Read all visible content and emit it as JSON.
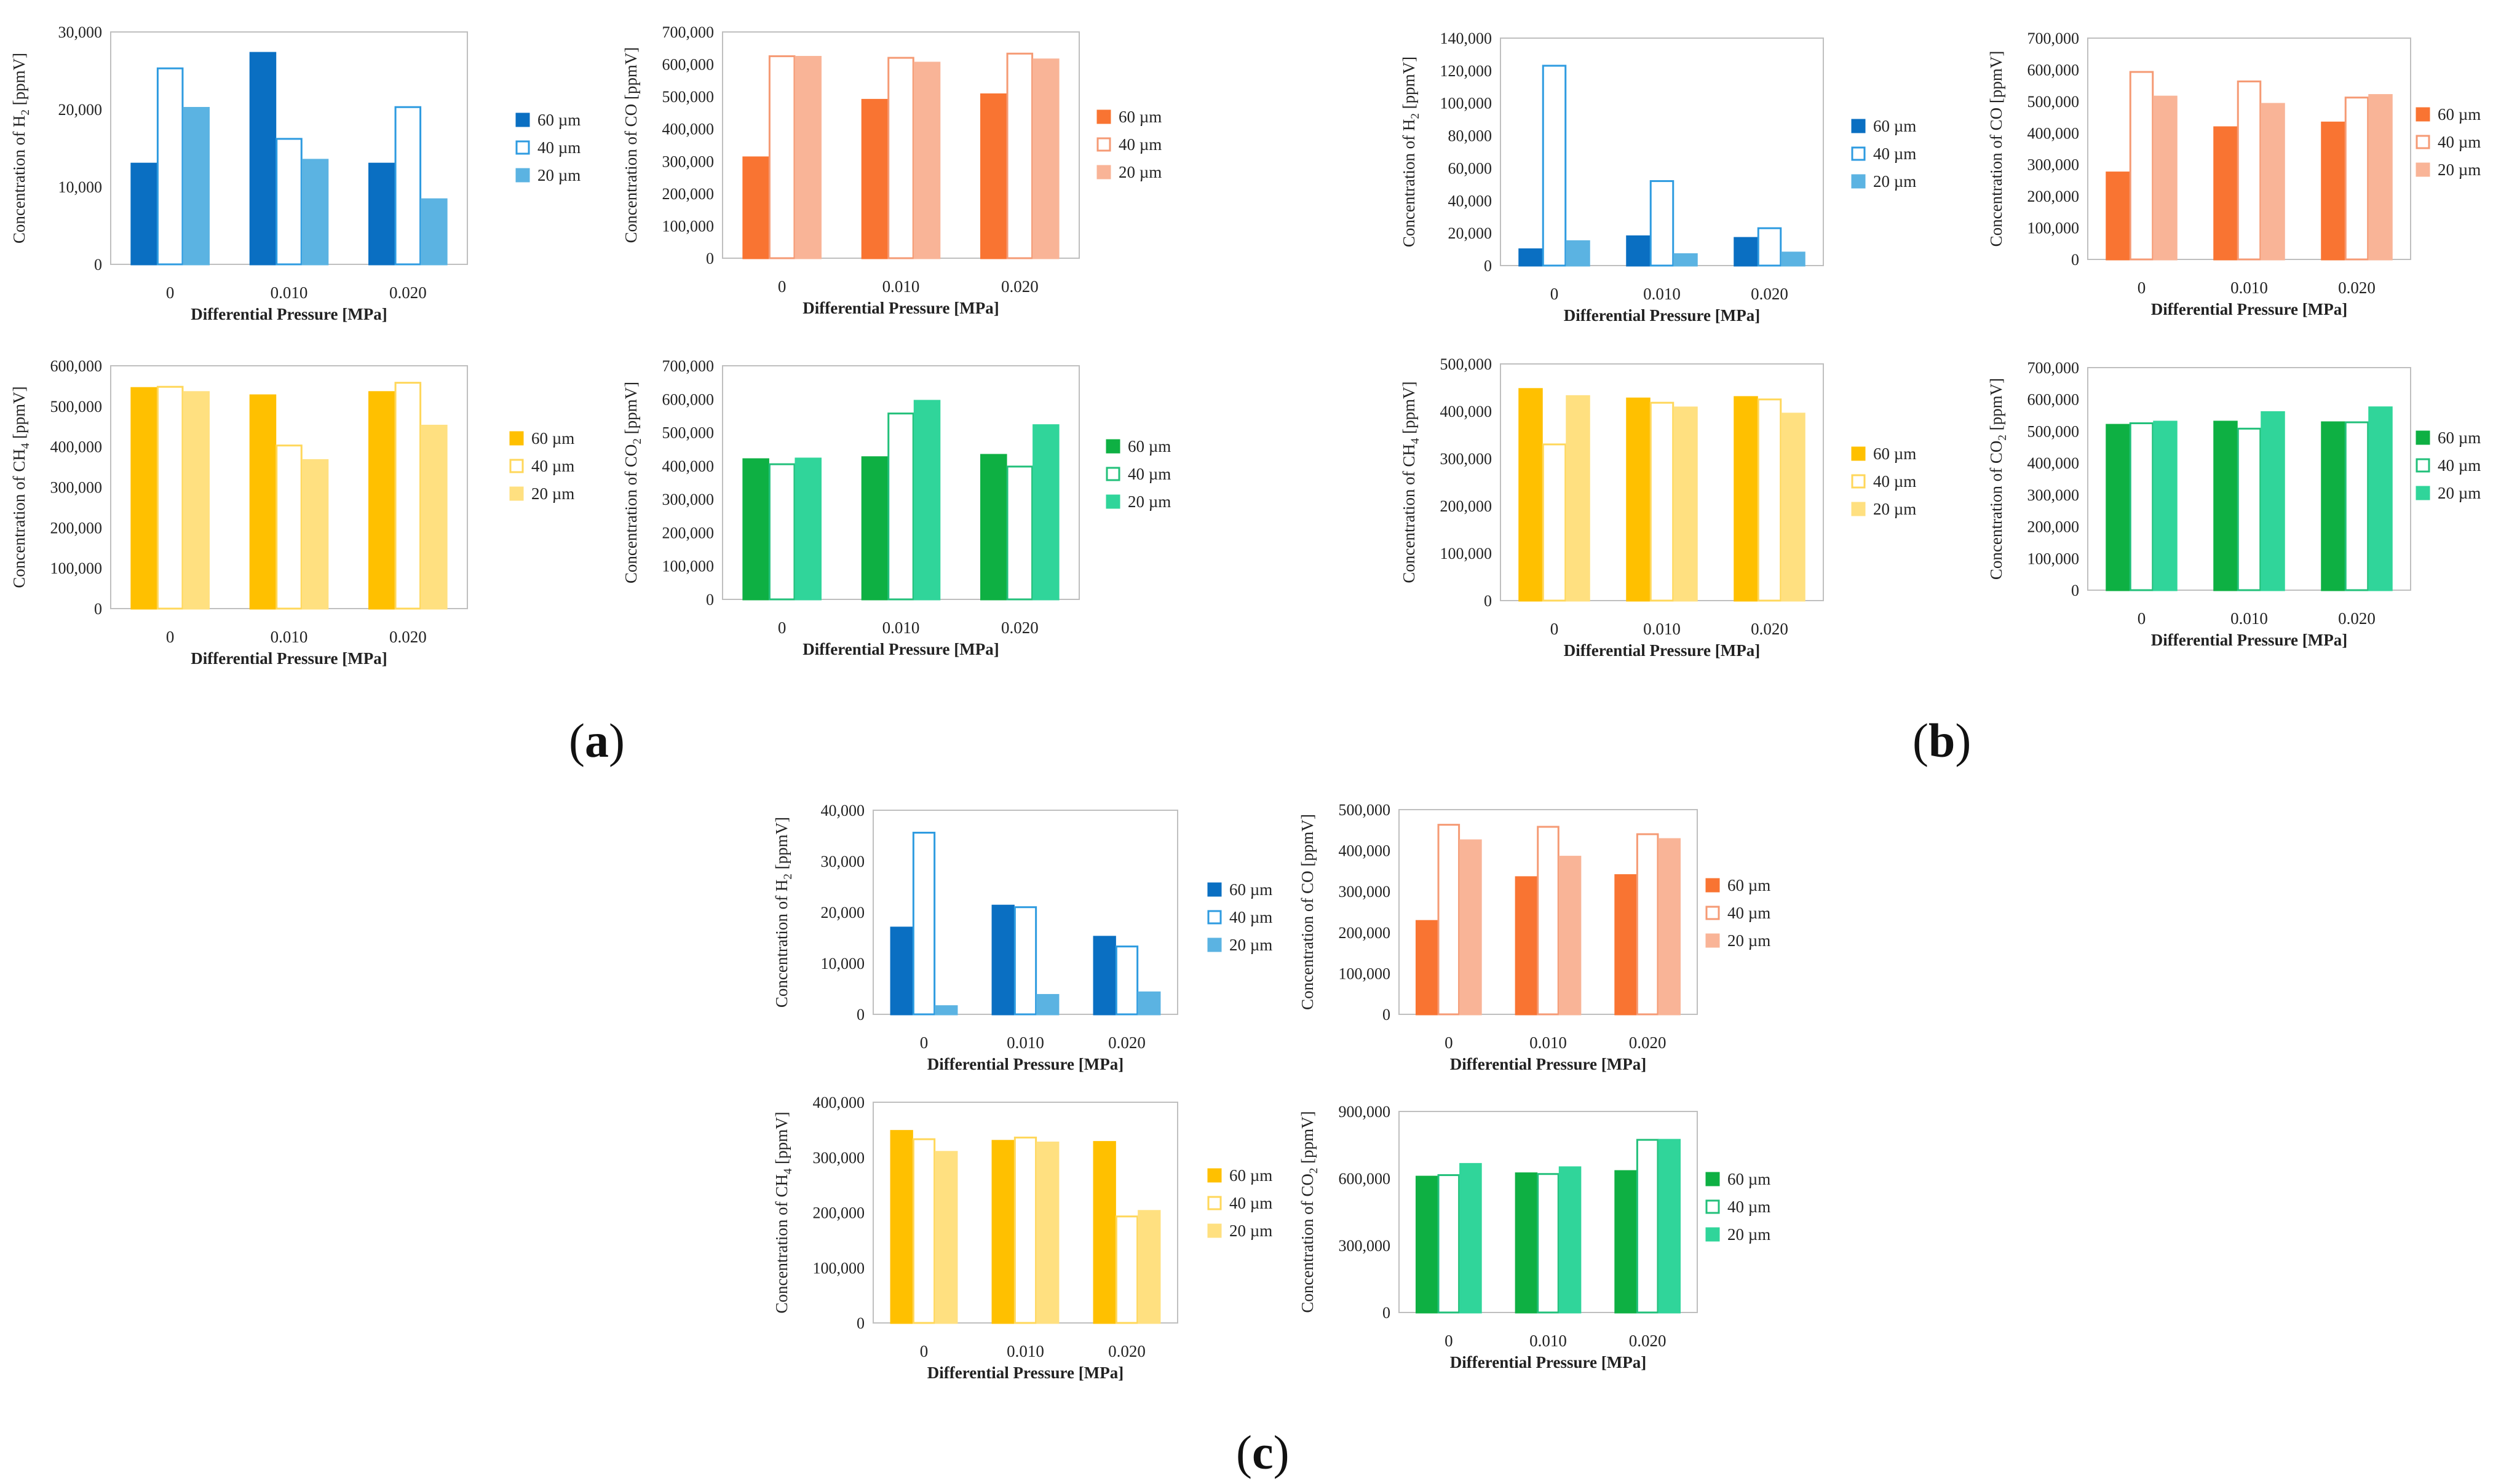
{
  "chart_data": [
    {
      "type": "bar",
      "panel": "a",
      "gas": "H2",
      "ylabel_prefix": "Concentration of H",
      "ylabel_sub": "2",
      "ylabel_suffix": " [ppmV]",
      "xlabel": "Differential  Pressure [MPa]",
      "categories": [
        "0",
        "0.010",
        "0.020"
      ],
      "yticks": [
        "0",
        "10,000",
        "20,000",
        "30,000"
      ],
      "ylim": [
        0,
        30000
      ],
      "series": [
        {
          "name": "60 µm",
          "values": [
            13000,
            27300,
            13000
          ]
        },
        {
          "name": "40 µm",
          "values": [
            25300,
            16200,
            20300
          ]
        },
        {
          "name": "20 µm",
          "values": [
            20200,
            13500,
            8400
          ]
        }
      ]
    },
    {
      "type": "bar",
      "panel": "a",
      "gas": "CO",
      "ylabel_prefix": "Concentration of CO [ppmV]",
      "ylabel_sub": "",
      "ylabel_suffix": "",
      "xlabel": "Differential  Pressure [MPa]",
      "categories": [
        "0",
        "0.010",
        "0.020"
      ],
      "yticks": [
        "0",
        "100,000",
        "200,000",
        "300,000",
        "400,000",
        "500,000",
        "600,000",
        "700,000"
      ],
      "ylim": [
        0,
        700000
      ],
      "series": [
        {
          "name": "60 µm",
          "values": [
            312000,
            490000,
            507000
          ]
        },
        {
          "name": "40 µm",
          "values": [
            625000,
            620000,
            633000
          ]
        },
        {
          "name": "20 µm",
          "values": [
            623000,
            605000,
            615000
          ]
        }
      ]
    },
    {
      "type": "bar",
      "panel": "a",
      "gas": "CH4",
      "ylabel_prefix": "Concentration of CH",
      "ylabel_sub": "4",
      "ylabel_suffix": "  [ppmV]",
      "xlabel": "Differential  Pressure [MPa]",
      "categories": [
        "0",
        "0.010",
        "0.020"
      ],
      "yticks": [
        "0",
        "100,000",
        "200,000",
        "300,000",
        "400,000",
        "500,000",
        "600,000"
      ],
      "ylim": [
        0,
        600000
      ],
      "series": [
        {
          "name": "60 µm",
          "values": [
            545000,
            527000,
            535000
          ]
        },
        {
          "name": "40 µm",
          "values": [
            548000,
            403000,
            558000
          ]
        },
        {
          "name": "20 µm",
          "values": [
            535000,
            367000,
            452000
          ]
        }
      ]
    },
    {
      "type": "bar",
      "panel": "a",
      "gas": "CO2",
      "ylabel_prefix": "Concentration of CO",
      "ylabel_sub": "2",
      "ylabel_suffix": " [ppmV]",
      "xlabel": "Differential  Pressure [MPa]",
      "categories": [
        "0",
        "0.010",
        "0.020"
      ],
      "yticks": [
        "0",
        "100,000",
        "200,000",
        "300,000",
        "400,000",
        "500,000",
        "600,000",
        "700,000"
      ],
      "ylim": [
        0,
        700000
      ],
      "series": [
        {
          "name": "60 µm",
          "values": [
            420000,
            426000,
            433000
          ]
        },
        {
          "name": "40 µm",
          "values": [
            405000,
            557000,
            398000
          ]
        },
        {
          "name": "20 µm",
          "values": [
            422000,
            595000,
            522000
          ]
        }
      ]
    },
    {
      "type": "bar",
      "panel": "b",
      "gas": "H2",
      "ylabel_prefix": "Concentration of H",
      "ylabel_sub": "2",
      "ylabel_suffix": " [ppmV]",
      "xlabel": "Differential  Pressure [MPa]",
      "categories": [
        "0",
        "0.010",
        "0.020"
      ],
      "yticks": [
        "0",
        "20,000",
        "40,000",
        "60,000",
        "80,000",
        "100,000",
        "120,000",
        "140,000"
      ],
      "ylim": [
        0,
        140000
      ],
      "series": [
        {
          "name": "60 µm",
          "values": [
            10000,
            18000,
            17000
          ]
        },
        {
          "name": "40 µm",
          "values": [
            123000,
            52000,
            23000
          ]
        },
        {
          "name": "20 µm",
          "values": [
            15000,
            7000,
            8000
          ]
        }
      ]
    },
    {
      "type": "bar",
      "panel": "b",
      "gas": "CO",
      "ylabel_prefix": "Concentration of CO [ppmV]",
      "ylabel_sub": "",
      "ylabel_suffix": "",
      "xlabel": "Differential  Pressure [MPa]",
      "categories": [
        "0",
        "0.010",
        "0.020"
      ],
      "yticks": [
        "0",
        "100,000",
        "200,000",
        "300,000",
        "400,000",
        "500,000",
        "600,000",
        "700,000"
      ],
      "ylim": [
        0,
        700000
      ],
      "series": [
        {
          "name": "60 µm",
          "values": [
            275000,
            418000,
            433000
          ]
        },
        {
          "name": "40 µm",
          "values": [
            593000,
            563000,
            512000
          ]
        },
        {
          "name": "20 µm",
          "values": [
            515000,
            492000,
            520000
          ]
        }
      ]
    },
    {
      "type": "bar",
      "panel": "b",
      "gas": "CH4",
      "ylabel_prefix": "Concentration of CH",
      "ylabel_sub": "4",
      "ylabel_suffix": "  [ppmV]",
      "xlabel": "Differential  Pressure [MPa]",
      "categories": [
        "0",
        "0.010",
        "0.020"
      ],
      "yticks": [
        "0",
        "100,000",
        "200,000",
        "300,000",
        "400,000",
        "500,000"
      ],
      "ylim": [
        0,
        500000
      ],
      "series": [
        {
          "name": "60 µm",
          "values": [
            447000,
            427000,
            430000
          ]
        },
        {
          "name": "40 µm",
          "values": [
            330000,
            418000,
            425000
          ]
        },
        {
          "name": "20 µm",
          "values": [
            432000,
            408000,
            395000
          ]
        }
      ]
    },
    {
      "type": "bar",
      "panel": "b",
      "gas": "CO2",
      "ylabel_prefix": "Concentration of  CO",
      "ylabel_sub": "2",
      "ylabel_suffix": " [ppmV]",
      "xlabel": "Differential  Pressure [MPa]",
      "categories": [
        "0",
        "0.010",
        "0.020"
      ],
      "yticks": [
        "0",
        "100,000",
        "200,000",
        "300,000",
        "400,000",
        "500,000",
        "600,000",
        "700,000"
      ],
      "ylim": [
        0,
        700000
      ],
      "series": [
        {
          "name": "60 µm",
          "values": [
            520000,
            530000,
            528000
          ]
        },
        {
          "name": "40 µm",
          "values": [
            525000,
            508000,
            528000
          ]
        },
        {
          "name": "20 µm",
          "values": [
            530000,
            560000,
            575000
          ]
        }
      ]
    },
    {
      "type": "bar",
      "panel": "c",
      "gas": "H2",
      "ylabel_prefix": "Concentration of H",
      "ylabel_sub": "2",
      "ylabel_suffix": " [ppmV]",
      "xlabel": "Differential  Pressure [MPa]",
      "categories": [
        "0",
        "0.010",
        "0.020"
      ],
      "yticks": [
        "0",
        "10,000",
        "20,000",
        "30,000",
        "40,000"
      ],
      "ylim": [
        0,
        40000
      ],
      "series": [
        {
          "name": "60 µm",
          "values": [
            17000,
            21300,
            15200
          ]
        },
        {
          "name": "40 µm",
          "values": [
            35600,
            21000,
            13300
          ]
        },
        {
          "name": "20 µm",
          "values": [
            1600,
            3800,
            4300
          ]
        }
      ]
    },
    {
      "type": "bar",
      "panel": "c",
      "gas": "CO",
      "ylabel_prefix": "Concentration of CO [ppmV]",
      "ylabel_sub": "",
      "ylabel_suffix": "",
      "xlabel": "Differential  Pressure [MPa]",
      "categories": [
        "0",
        "0.010",
        "0.020"
      ],
      "yticks": [
        "0",
        "100,000",
        "200,000",
        "300,000",
        "400,000",
        "500,000"
      ],
      "ylim": [
        0,
        500000
      ],
      "series": [
        {
          "name": "60 µm",
          "values": [
            228000,
            335000,
            340000
          ]
        },
        {
          "name": "40 µm",
          "values": [
            463000,
            458000,
            440000
          ]
        },
        {
          "name": "20 µm",
          "values": [
            425000,
            385000,
            428000
          ]
        }
      ]
    },
    {
      "type": "bar",
      "panel": "c",
      "gas": "CH4",
      "ylabel_prefix": "Concentration of CH",
      "ylabel_sub": "4",
      "ylabel_suffix": "  [ppmV]",
      "xlabel": "Differential  Pressure [MPa]",
      "categories": [
        "0",
        "0.010",
        "0.020"
      ],
      "yticks": [
        "0",
        "100,000",
        "200,000",
        "300,000",
        "400,000"
      ],
      "ylim": [
        0,
        400000
      ],
      "series": [
        {
          "name": "60 µm",
          "values": [
            348000,
            330000,
            328000
          ]
        },
        {
          "name": "40 µm",
          "values": [
            333000,
            336000,
            193000
          ]
        },
        {
          "name": "20 µm",
          "values": [
            310000,
            327000,
            203000
          ]
        }
      ]
    },
    {
      "type": "bar",
      "panel": "c",
      "gas": "CO2",
      "ylabel_prefix": "Concentration of CO",
      "ylabel_sub": "2",
      "ylabel_suffix": " [ppmV]",
      "xlabel": "Differential  Pressure [MPa]",
      "categories": [
        "0",
        "0.010",
        "0.020"
      ],
      "yticks": [
        "0",
        "300,000",
        "600,000",
        "900,000"
      ],
      "ylim": [
        0,
        900000
      ],
      "series": [
        {
          "name": "60 µm",
          "values": [
            608000,
            623000,
            633000
          ]
        },
        {
          "name": "40 µm",
          "values": [
            615000,
            620000,
            773000
          ]
        },
        {
          "name": "20 µm",
          "values": [
            665000,
            650000,
            773000
          ]
        }
      ]
    }
  ],
  "panel_labels": [
    {
      "id": "a",
      "text": "a"
    },
    {
      "id": "b",
      "text": "b"
    },
    {
      "id": "c",
      "text": "c"
    }
  ],
  "colors": {
    "H2": {
      "solid": "#0A6FC2",
      "outline": "#2E9BE0",
      "light": "#5BB3E2"
    },
    "CO": {
      "solid": "#F97432",
      "outline": "#F59A74",
      "light": "#F9B497"
    },
    "CH4": {
      "solid": "#FFC000",
      "outline": "#FFD75A",
      "light": "#FFE080"
    },
    "CO2": {
      "solid": "#0EB043",
      "outline": "#22C07A",
      "light": "#30D59A"
    }
  }
}
